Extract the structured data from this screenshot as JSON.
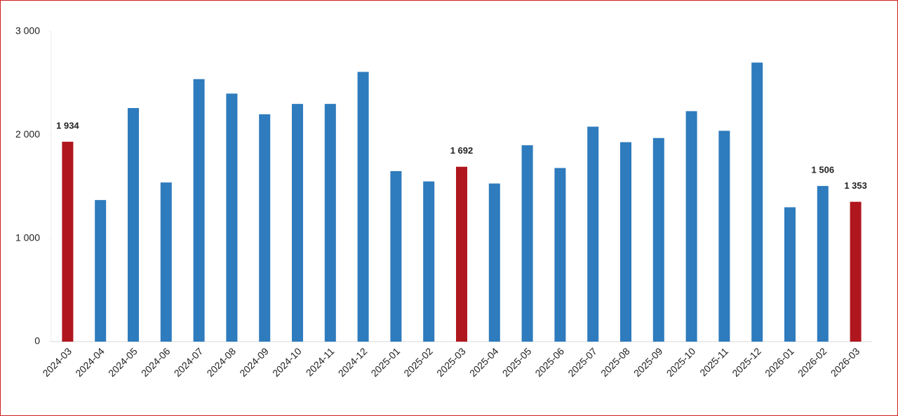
{
  "chart_data": {
    "type": "bar",
    "categories": [
      "2024-03",
      "2024-04",
      "2024-05",
      "2024-06",
      "2024-07",
      "2024-08",
      "2024-09",
      "2024-10",
      "2024-11",
      "2024-12",
      "2025-01",
      "2025-02",
      "2025-03",
      "2025-04",
      "2025-05",
      "2025-06",
      "2025-07",
      "2025-08",
      "2025-09",
      "2025-10",
      "2025-11",
      "2025-12",
      "2026-01",
      "2026-02",
      "2026-03"
    ],
    "values": [
      1934,
      1370,
      2260,
      1540,
      2540,
      2400,
      2200,
      2300,
      2300,
      2610,
      1650,
      1550,
      1692,
      1530,
      1900,
      1680,
      2080,
      1930,
      1970,
      2230,
      2040,
      2700,
      1300,
      1506,
      1353
    ],
    "value_labels": [
      "1 934",
      null,
      null,
      null,
      null,
      null,
      null,
      null,
      null,
      null,
      null,
      null,
      "1 692",
      null,
      null,
      null,
      null,
      null,
      null,
      null,
      null,
      null,
      null,
      "1 506",
      "1 353"
    ],
    "colors": [
      "#b0161e",
      "#2e7bbd",
      "#2e7bbd",
      "#2e7bbd",
      "#2e7bbd",
      "#2e7bbd",
      "#2e7bbd",
      "#2e7bbd",
      "#2e7bbd",
      "#2e7bbd",
      "#2e7bbd",
      "#2e7bbd",
      "#b0161e",
      "#2e7bbd",
      "#2e7bbd",
      "#2e7bbd",
      "#2e7bbd",
      "#2e7bbd",
      "#2e7bbd",
      "#2e7bbd",
      "#2e7bbd",
      "#2e7bbd",
      "#2e7bbd",
      "#2e7bbd",
      "#b0161e"
    ],
    "ylim": [
      0,
      3000
    ],
    "yticks": [
      0,
      {
        "value": 1000,
        "label": "1 000"
      },
      {
        "value": 2000,
        "label": "2 000"
      },
      {
        "value": 3000,
        "label": "3 000"
      }
    ],
    "grid": false
  }
}
